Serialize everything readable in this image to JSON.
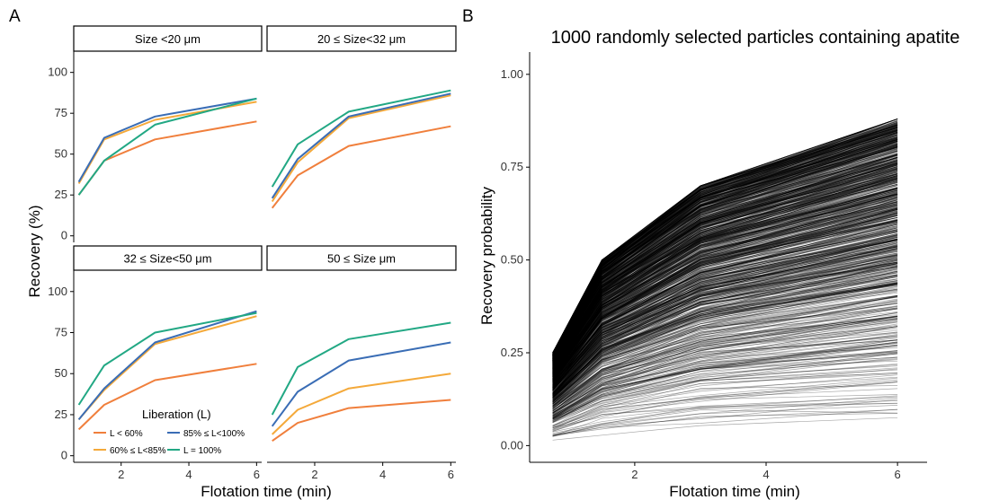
{
  "panel_labels": {
    "a": "A",
    "b": "B"
  },
  "chart_data": [
    {
      "type": "line",
      "panel": "A",
      "xlabel": "Flotation time (min)",
      "ylabel": "Recovery (%)",
      "ylim": [
        0,
        100
      ],
      "x_ticks": [
        2,
        4,
        6
      ],
      "y_ticks": [
        0,
        25,
        50,
        75,
        100
      ],
      "legend_title": "Liberation (L)",
      "legend_position": "bottom-left",
      "series_meta": [
        {
          "name": "L < 60%",
          "color": "#F07F3C"
        },
        {
          "name": "60% ≤ L<85%",
          "color": "#F4A93A"
        },
        {
          "name": "85% ≤ L<100%",
          "color": "#3A6DB5"
        },
        {
          "name": "L = 100%",
          "color": "#22A884"
        }
      ],
      "x": [
        0.75,
        1.5,
        3,
        6
      ],
      "facets": [
        {
          "title": "Size <20 μm",
          "series": [
            {
              "name": "L < 60%",
              "values": [
                25,
                46,
                59,
                70
              ]
            },
            {
              "name": "60% ≤ L<85%",
              "values": [
                32,
                59,
                71,
                82
              ]
            },
            {
              "name": "85% ≤ L<100%",
              "values": [
                33,
                60,
                73,
                84
              ]
            },
            {
              "name": "L = 100%",
              "values": [
                25,
                46,
                68,
                84
              ]
            }
          ]
        },
        {
          "title": "20 ≤ Size<32 μm",
          "series": [
            {
              "name": "L < 60%",
              "values": [
                17,
                37,
                55,
                67
              ]
            },
            {
              "name": "60% ≤ L<85%",
              "values": [
                21,
                45,
                72,
                86
              ]
            },
            {
              "name": "85% ≤ L<100%",
              "values": [
                23,
                47,
                73,
                87
              ]
            },
            {
              "name": "L = 100%",
              "values": [
                30,
                56,
                76,
                89
              ]
            }
          ]
        },
        {
          "title": "32 ≤ Size<50 μm",
          "series": [
            {
              "name": "L < 60%",
              "values": [
                16,
                31,
                46,
                56
              ]
            },
            {
              "name": "60% ≤ L<85%",
              "values": [
                22,
                40,
                68,
                85
              ]
            },
            {
              "name": "85% ≤ L<100%",
              "values": [
                22,
                41,
                69,
                88
              ]
            },
            {
              "name": "L = 100%",
              "values": [
                31,
                55,
                75,
                87
              ]
            }
          ]
        },
        {
          "title": "50 ≤ Size μm",
          "series": [
            {
              "name": "L < 60%",
              "values": [
                9,
                20,
                29,
                34
              ]
            },
            {
              "name": "60% ≤ L<85%",
              "values": [
                13,
                28,
                41,
                50
              ]
            },
            {
              "name": "85% ≤ L<100%",
              "values": [
                18,
                39,
                58,
                69
              ]
            },
            {
              "name": "L = 100%",
              "values": [
                25,
                54,
                71,
                81
              ]
            }
          ]
        }
      ]
    },
    {
      "type": "line",
      "panel": "B",
      "title": "1000 randomly selected particles containing apatite",
      "xlabel": "Flotation time (min)",
      "ylabel": "Recovery probability",
      "ylim": [
        0,
        1.05
      ],
      "x_ticks": [
        2,
        4,
        6
      ],
      "y_ticks": [
        0.0,
        0.25,
        0.5,
        0.75,
        1.0
      ],
      "y_tick_labels": [
        "0.00",
        "0.25",
        "0.50",
        "0.75",
        "1.00"
      ],
      "n_particles": 1000,
      "line_color": "#000000",
      "x": [
        0.75,
        1.5,
        3,
        6
      ],
      "envelope_max": [
        0.25,
        0.5,
        0.7,
        0.88
      ],
      "envelope_min": [
        0.01,
        0.02,
        0.035,
        0.045
      ]
    }
  ]
}
